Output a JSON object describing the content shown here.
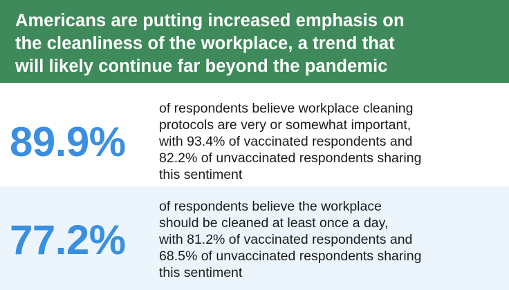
{
  "header": {
    "line1": "Americans are putting increased emphasis on",
    "line2": "the cleanliness of the workplace, a trend that",
    "line3": "will likely continue far beyond the pandemic"
  },
  "stats": [
    {
      "value": "89.9%",
      "lines": [
        "of respondents believe workplace cleaning",
        "protocols are very or somewhat important,",
        "with 93.4% of vaccinated respondents and",
        "82.2% of unvaccinated respondents sharing",
        "this sentiment"
      ]
    },
    {
      "value": "77.2%",
      "lines": [
        "of respondents believe the workplace",
        "should be cleaned at least once a day,",
        "with 81.2% of vaccinated respondents and",
        "68.5% of unvaccinated respondents sharing",
        "this sentiment"
      ]
    }
  ],
  "colors": {
    "header_bg": "#3e8a5a",
    "header_text": "#ffffff",
    "stat_value": "#3b8fe0",
    "row_alt_bg": "#ecf5fb",
    "body_text": "#1a1a1a"
  }
}
